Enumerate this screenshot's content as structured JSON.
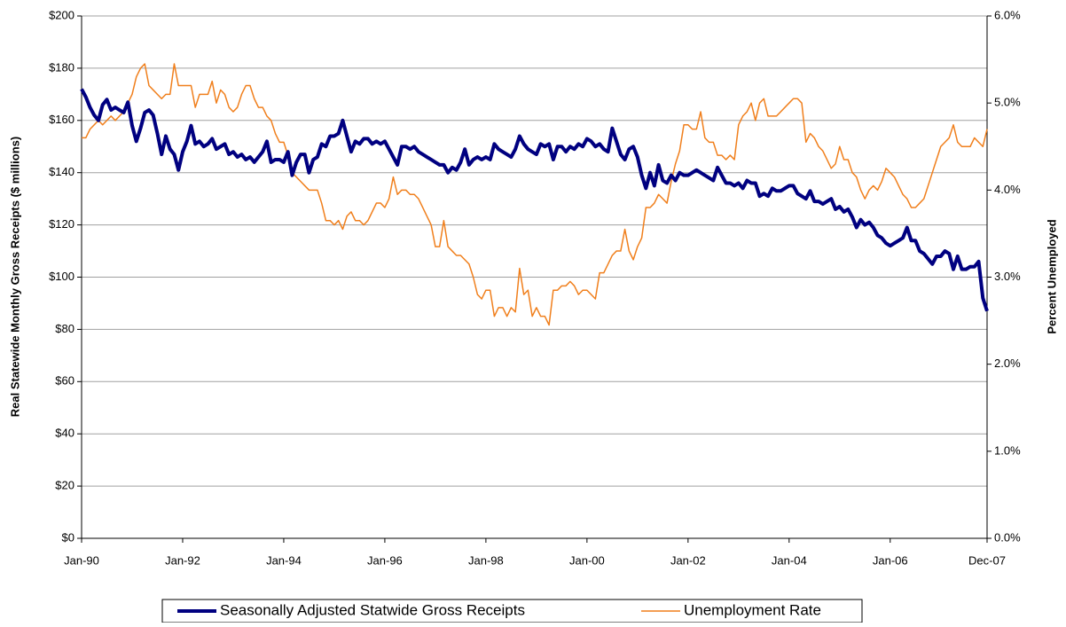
{
  "chart_data": {
    "type": "line",
    "y_label": "Real Statewide Monthly Gross Receipts ($ millions)",
    "y2_label": "Percent Unemployed",
    "categories": [
      "Jan-90",
      null,
      null,
      null,
      null,
      null,
      null,
      null,
      null,
      null,
      null,
      null,
      null,
      null,
      null,
      null,
      null,
      null,
      null,
      null,
      null,
      null,
      null,
      null,
      "Jan-92",
      null,
      null,
      null,
      null,
      null,
      null,
      null,
      null,
      null,
      null,
      null,
      null,
      null,
      null,
      null,
      null,
      null,
      null,
      null,
      null,
      null,
      null,
      null,
      "Jan-94",
      null,
      null,
      null,
      null,
      null,
      null,
      null,
      null,
      null,
      null,
      null,
      null,
      null,
      null,
      null,
      null,
      null,
      null,
      null,
      null,
      null,
      null,
      null,
      "Jan-96",
      null,
      null,
      null,
      null,
      null,
      null,
      null,
      null,
      null,
      null,
      null,
      null,
      null,
      null,
      null,
      null,
      null,
      null,
      null,
      null,
      null,
      null,
      null,
      "Jan-98",
      null,
      null,
      null,
      null,
      null,
      null,
      null,
      null,
      null,
      null,
      null,
      null,
      null,
      null,
      null,
      null,
      null,
      null,
      null,
      null,
      null,
      null,
      null,
      "Jan-00",
      null,
      null,
      null,
      null,
      null,
      null,
      null,
      null,
      null,
      null,
      null,
      null,
      null,
      null,
      null,
      null,
      null,
      null,
      null,
      null,
      null,
      null,
      null,
      "Jan-02",
      null,
      null,
      null,
      null,
      null,
      null,
      null,
      null,
      null,
      null,
      null,
      null,
      null,
      null,
      null,
      null,
      null,
      null,
      null,
      null,
      null,
      null,
      null,
      "Jan-04",
      null,
      null,
      null,
      null,
      null,
      null,
      null,
      null,
      null,
      null,
      null,
      null,
      null,
      null,
      null,
      null,
      null,
      null,
      null,
      null,
      null,
      null,
      null,
      "Jan-06",
      null,
      null,
      null,
      null,
      null,
      null,
      null,
      null,
      null,
      null,
      null,
      null,
      null,
      null,
      null,
      null,
      null,
      null,
      null,
      null,
      null,
      null,
      "Dec-07"
    ],
    "series": [
      {
        "name": "Seasonally Adjusted Statwide Gross Receipts",
        "color": "#000080",
        "axis": "y",
        "values": [
          172,
          169,
          165,
          162,
          160,
          166,
          168,
          164,
          165,
          164,
          163,
          167,
          158,
          152,
          157,
          163,
          164,
          162,
          155,
          147,
          154,
          149,
          147,
          141,
          148,
          152,
          158,
          151,
          152,
          150,
          151,
          153,
          149,
          150,
          151,
          147,
          148,
          146,
          147,
          145,
          146,
          144,
          146,
          148,
          152,
          144,
          145,
          145,
          144,
          148,
          139,
          144,
          147,
          147,
          140,
          145,
          146,
          151,
          150,
          154,
          154,
          155,
          160,
          154,
          148,
          152,
          151,
          153,
          153,
          151,
          152,
          151,
          152,
          149,
          146,
          143,
          150,
          150,
          149,
          150,
          148,
          147,
          146,
          145,
          144,
          143,
          143,
          140,
          142,
          141,
          144,
          149,
          143,
          145,
          146,
          145,
          146,
          145,
          151,
          149,
          148,
          147,
          146,
          149,
          154,
          151,
          149,
          148,
          147,
          151,
          150,
          151,
          145,
          150,
          150,
          148,
          150,
          149,
          151,
          150,
          153,
          152,
          150,
          151,
          149,
          148,
          157,
          152,
          147,
          145,
          149,
          150,
          146,
          139,
          134,
          140,
          135,
          143,
          137,
          136,
          139,
          137,
          140,
          139,
          139,
          140,
          141,
          140,
          139,
          138,
          137,
          142,
          139,
          136,
          136,
          135,
          136,
          134,
          137,
          136,
          136,
          131,
          132,
          131,
          134,
          133,
          133,
          134,
          135,
          135,
          132,
          131,
          130,
          133,
          129,
          129,
          128,
          129,
          130,
          126,
          127,
          125,
          126,
          123,
          119,
          122,
          120,
          121,
          119,
          116,
          115,
          113,
          112,
          113,
          114,
          115,
          119,
          114,
          114,
          110,
          109,
          107,
          105,
          108,
          108,
          110,
          109,
          103,
          108,
          103,
          103,
          104,
          104,
          106,
          92,
          87
        ]
      },
      {
        "name": "Unemployment Rate",
        "color": "#f07f1c",
        "axis": "y2",
        "values": [
          4.6,
          4.6,
          4.7,
          4.75,
          4.8,
          4.75,
          4.8,
          4.85,
          4.8,
          4.85,
          4.9,
          5.0,
          5.1,
          5.3,
          5.4,
          5.45,
          5.2,
          5.15,
          5.1,
          5.05,
          5.1,
          5.1,
          5.45,
          5.2,
          5.2,
          5.2,
          5.2,
          4.95,
          5.1,
          5.1,
          5.1,
          5.25,
          5.0,
          5.15,
          5.1,
          4.95,
          4.9,
          4.95,
          5.1,
          5.2,
          5.2,
          5.05,
          4.95,
          4.95,
          4.85,
          4.8,
          4.65,
          4.55,
          4.55,
          4.4,
          4.2,
          4.15,
          4.1,
          4.05,
          4.0,
          4.0,
          4.0,
          3.85,
          3.65,
          3.65,
          3.6,
          3.65,
          3.55,
          3.7,
          3.75,
          3.65,
          3.65,
          3.6,
          3.65,
          3.75,
          3.85,
          3.85,
          3.8,
          3.9,
          4.15,
          3.95,
          4.0,
          4.0,
          3.95,
          3.95,
          3.9,
          3.8,
          3.7,
          3.6,
          3.35,
          3.35,
          3.65,
          3.35,
          3.3,
          3.25,
          3.25,
          3.2,
          3.15,
          3.0,
          2.8,
          2.75,
          2.85,
          2.85,
          2.55,
          2.65,
          2.65,
          2.55,
          2.65,
          2.6,
          3.1,
          2.8,
          2.85,
          2.55,
          2.65,
          2.55,
          2.55,
          2.45,
          2.85,
          2.85,
          2.9,
          2.9,
          2.95,
          2.9,
          2.8,
          2.85,
          2.85,
          2.8,
          2.75,
          3.05,
          3.05,
          3.15,
          3.25,
          3.3,
          3.3,
          3.55,
          3.3,
          3.2,
          3.35,
          3.45,
          3.8,
          3.8,
          3.85,
          3.95,
          3.9,
          3.85,
          4.1,
          4.3,
          4.45,
          4.75,
          4.75,
          4.7,
          4.7,
          4.9,
          4.6,
          4.55,
          4.55,
          4.4,
          4.4,
          4.35,
          4.4,
          4.35,
          4.75,
          4.85,
          4.9,
          5.0,
          4.8,
          5.0,
          5.05,
          4.85,
          4.85,
          4.85,
          4.9,
          4.95,
          5.0,
          5.05,
          5.05,
          5.0,
          4.55,
          4.65,
          4.6,
          4.5,
          4.45,
          4.35,
          4.25,
          4.3,
          4.5,
          4.35,
          4.35,
          4.2,
          4.15,
          4.0,
          3.9,
          4.0,
          4.05,
          4.0,
          4.1,
          4.25,
          4.2,
          4.15,
          4.05,
          3.95,
          3.9,
          3.8,
          3.8,
          3.85,
          3.9,
          4.05,
          4.2,
          4.35,
          4.5,
          4.55,
          4.6,
          4.75,
          4.55,
          4.5,
          4.5,
          4.5,
          4.6,
          4.55,
          4.5,
          4.7
        ]
      }
    ],
    "ylim": [
      0,
      200
    ],
    "yticks": [
      {
        "value": 0,
        "label": "$0"
      },
      {
        "value": 20,
        "label": "$20"
      },
      {
        "value": 40,
        "label": "$40"
      },
      {
        "value": 60,
        "label": "$60"
      },
      {
        "value": 80,
        "label": "$80"
      },
      {
        "value": 100,
        "label": "$100"
      },
      {
        "value": 120,
        "label": "$120"
      },
      {
        "value": 140,
        "label": "$140"
      },
      {
        "value": 160,
        "label": "$160"
      },
      {
        "value": 180,
        "label": "$180"
      },
      {
        "value": 200,
        "label": "$200"
      }
    ],
    "y2lim": [
      0,
      6
    ],
    "y2ticks": [
      {
        "value": 0,
        "label": "0.0%"
      },
      {
        "value": 1,
        "label": "1.0%"
      },
      {
        "value": 2,
        "label": "2.0%"
      },
      {
        "value": 3,
        "label": "3.0%"
      },
      {
        "value": 4,
        "label": "4.0%"
      },
      {
        "value": 5,
        "label": "5.0%"
      },
      {
        "value": 6,
        "label": "6.0%"
      }
    ],
    "grid": true,
    "legend": "bottom"
  }
}
